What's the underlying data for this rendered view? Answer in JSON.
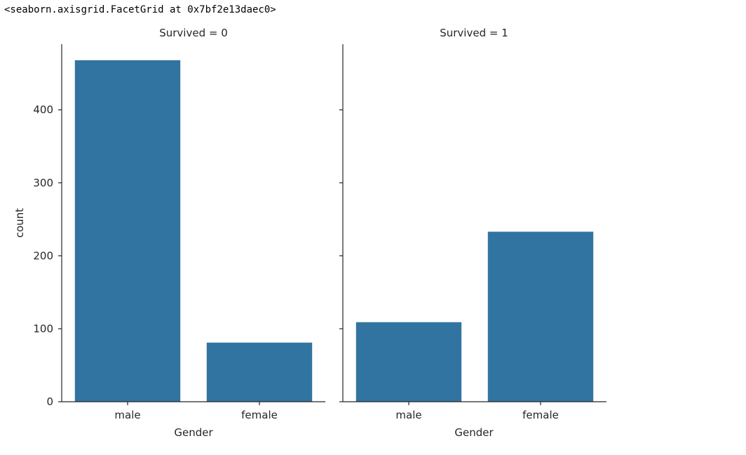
{
  "output_repr": "<seaborn.axisgrid.FacetGrid at 0x7bf2e13daec0>",
  "chart_data": {
    "type": "bar",
    "bar_color": "#3274a1",
    "axis_color": "#262626",
    "ylabel": "count",
    "xlabel": "Gender",
    "ylim": [
      0,
      490
    ],
    "yticks": [
      0,
      100,
      200,
      300,
      400
    ],
    "categories": [
      "male",
      "female"
    ],
    "facets": [
      {
        "title": "Survived = 0",
        "values": [
          468,
          81
        ]
      },
      {
        "title": "Survived = 1",
        "values": [
          109,
          233
        ]
      }
    ]
  }
}
